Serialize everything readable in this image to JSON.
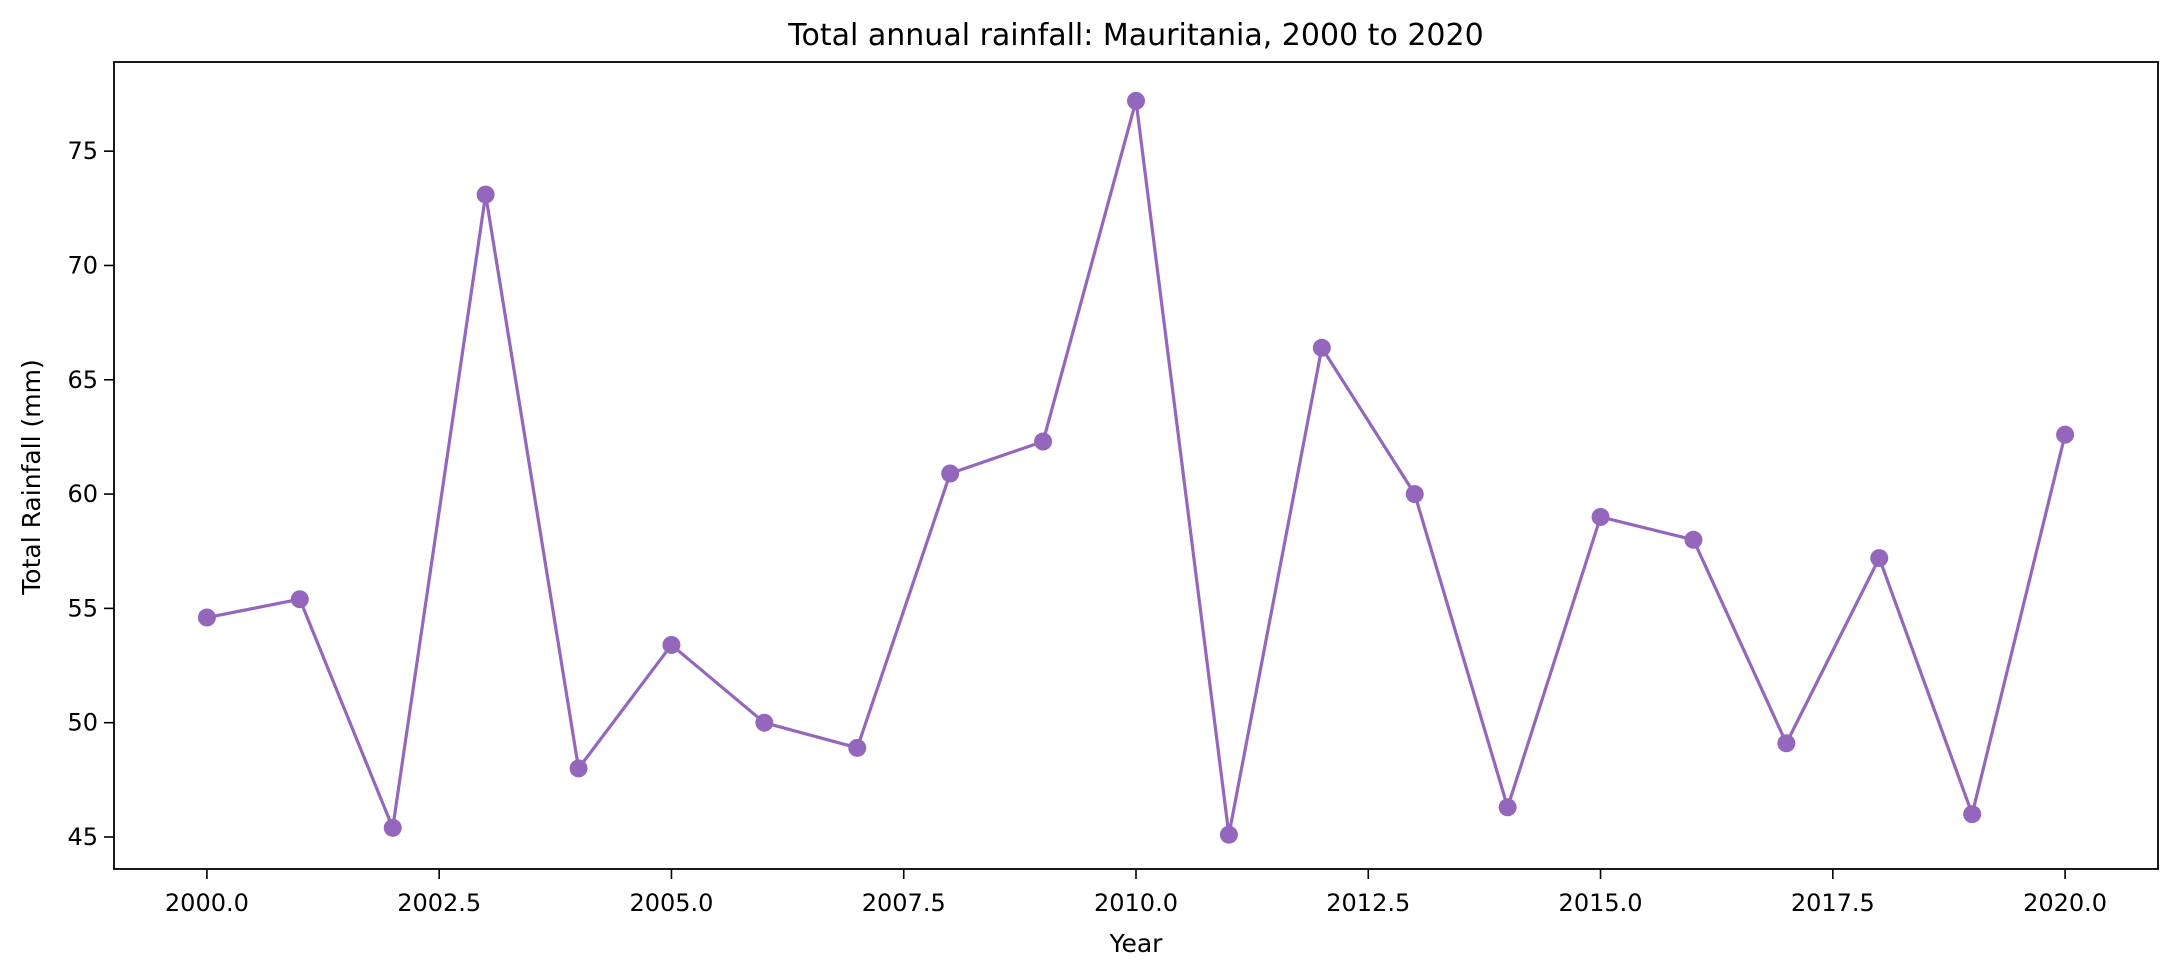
{
  "chart_data": {
    "type": "line",
    "title": "Total annual rainfall: Mauritania, 2000 to 2020",
    "xlabel": "Year",
    "ylabel": "Total Rainfall (mm)",
    "xlim": [
      1999.0,
      2021.0
    ],
    "ylim": [
      43.6,
      78.9
    ],
    "xticks": [
      2000.0,
      2002.5,
      2005.0,
      2007.5,
      2010.0,
      2012.5,
      2015.0,
      2017.5,
      2020.0
    ],
    "xtick_labels": [
      "2000.0",
      "2002.5",
      "2005.0",
      "2007.5",
      "2010.0",
      "2012.5",
      "2015.0",
      "2017.5",
      "2020.0"
    ],
    "yticks": [
      45,
      50,
      55,
      60,
      65,
      70,
      75
    ],
    "ytick_labels": [
      "45",
      "50",
      "55",
      "60",
      "65",
      "70",
      "75"
    ],
    "grid": false,
    "series": [
      {
        "color": "#9467bd",
        "marker": "circle",
        "x": [
          2000,
          2001,
          2002,
          2003,
          2004,
          2005,
          2006,
          2007,
          2008,
          2009,
          2010,
          2011,
          2012,
          2013,
          2014,
          2015,
          2016,
          2017,
          2018,
          2019,
          2020
        ],
        "y": [
          54.6,
          55.4,
          45.4,
          73.1,
          48.0,
          53.4,
          50.0,
          48.9,
          60.9,
          62.3,
          77.2,
          45.1,
          66.4,
          60.0,
          46.3,
          59.0,
          58.0,
          49.1,
          57.2,
          46.0,
          62.6
        ]
      }
    ]
  }
}
